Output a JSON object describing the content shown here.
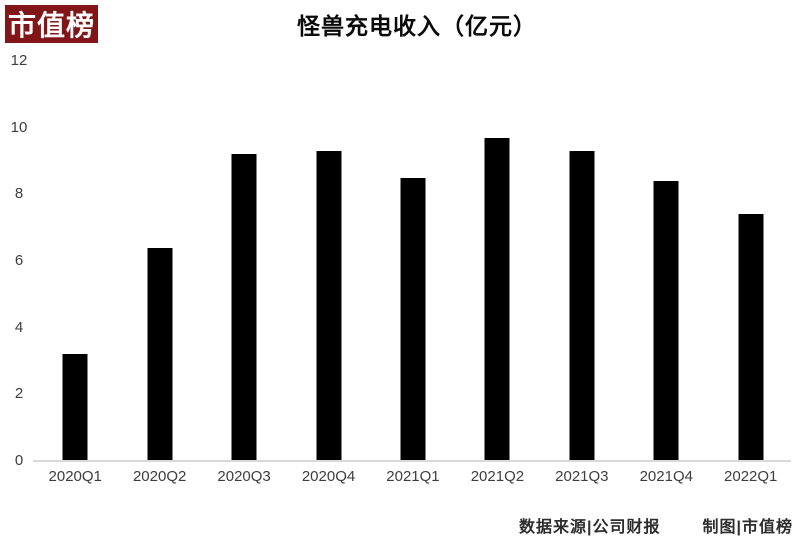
{
  "logo": {
    "text": "市值榜",
    "bg_color": "#811619",
    "text_color": "#ffffff"
  },
  "chart_data": {
    "type": "bar",
    "title": "怪兽充电收入（亿元）",
    "categories": [
      "2020Q1",
      "2020Q2",
      "2020Q3",
      "2020Q4",
      "2021Q1",
      "2021Q2",
      "2021Q3",
      "2021Q4",
      "2022Q1"
    ],
    "values": [
      3.2,
      6.4,
      9.2,
      9.3,
      8.5,
      9.7,
      9.3,
      8.4,
      7.4
    ],
    "xlabel": "",
    "ylabel": "",
    "ylim": [
      0,
      12
    ],
    "yticks": [
      0,
      2,
      4,
      6,
      8,
      10,
      12
    ],
    "bar_color": "#000000",
    "grid": false,
    "legend": "none",
    "axis_line": "bottom only, light gray"
  },
  "footer": {
    "source_label": "数据来源|公司财报",
    "credit_label": "制图|市值榜"
  }
}
